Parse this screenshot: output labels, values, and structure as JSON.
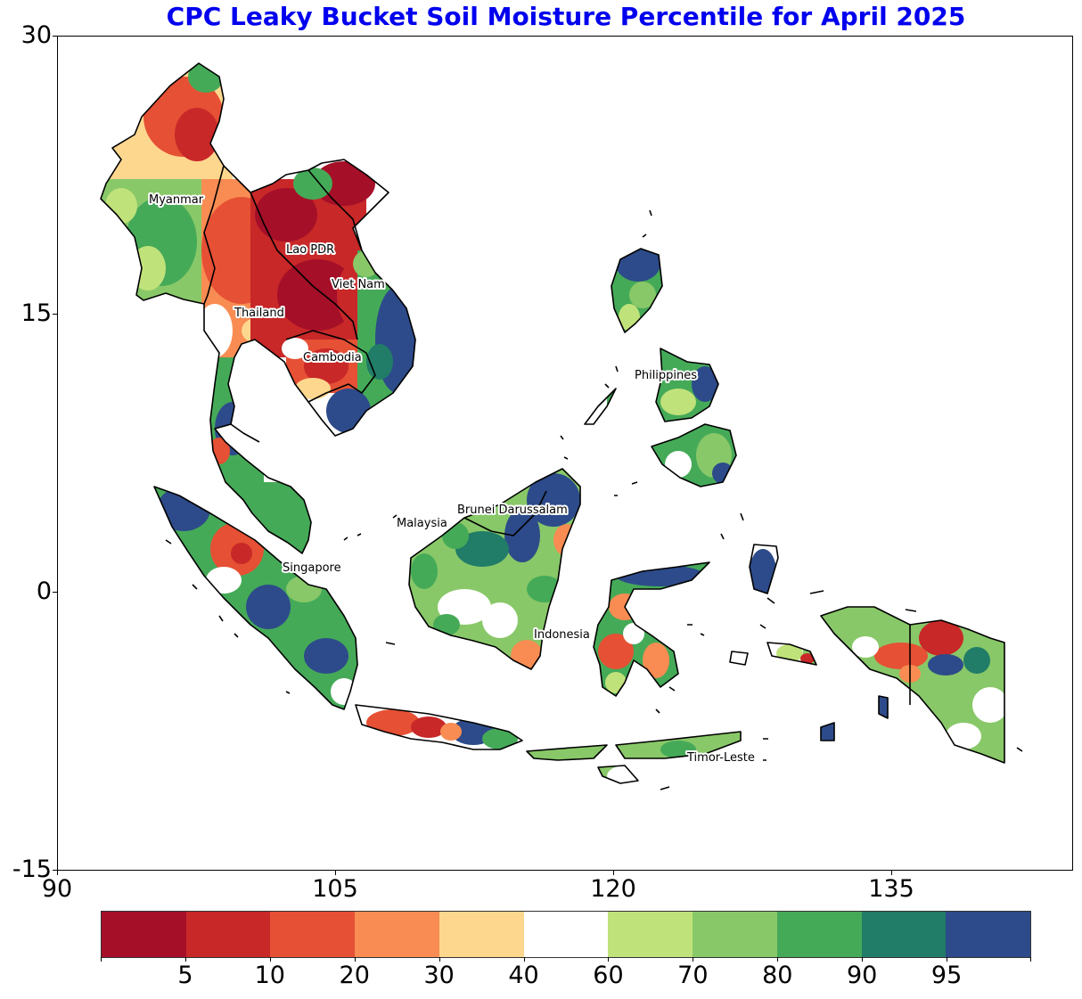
{
  "title": "CPC Leaky Bucket Soil Moisture Percentile for April 2025",
  "y_ticks": [
    "30",
    "15",
    "0",
    "-15"
  ],
  "x_ticks": [
    "90",
    "105",
    "120",
    "135"
  ],
  "colorbar": {
    "tick_labels": [
      "5",
      "10",
      "20",
      "30",
      "40",
      "60",
      "70",
      "80",
      "90",
      "95"
    ],
    "colors": [
      "#a50f28",
      "#c82828",
      "#e65034",
      "#f88c52",
      "#fed78e",
      "#ffffff",
      "#c0e27a",
      "#88c868",
      "#45aa58",
      "#217c68",
      "#2d4b8a"
    ]
  },
  "country_labels": [
    "Myanmar",
    "Lao PDR",
    "Viet Nam",
    "Thailand",
    "Cambodia",
    "Philippines",
    "Brunei Darussalam",
    "Malaysia",
    "Singapore",
    "Indonesia",
    "Timor-Leste"
  ],
  "map": {
    "lon_range": [
      90,
      145
    ],
    "lat_range": [
      -15,
      30
    ]
  }
}
